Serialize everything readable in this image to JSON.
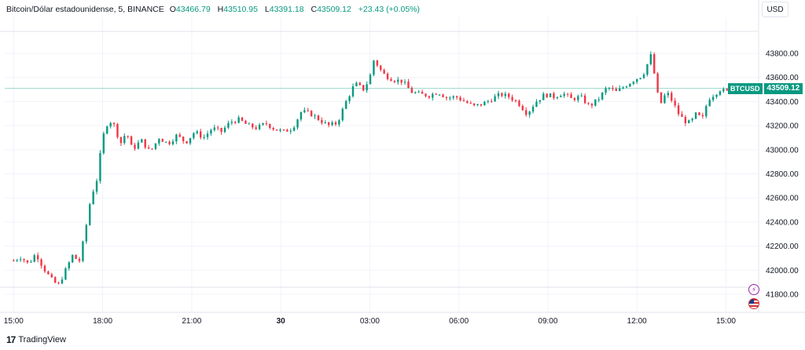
{
  "legend": {
    "symbol": "Bitcoin/Dólar estadounidense, 5, BINANCE",
    "open_label": "O",
    "open": "43466.79",
    "high_label": "H",
    "high": "43510.95",
    "low_label": "L",
    "low": "43391.18",
    "close_label": "C",
    "close": "43509.12",
    "change": "+23.43 (+0.05%)"
  },
  "currency": "USD",
  "price_tag": {
    "symbol": "BTCUSD",
    "value": "43509.12"
  },
  "footer": {
    "logo": "17",
    "brand": "TradingView"
  },
  "icons": [
    "lightning-icon",
    "us-flag-icon"
  ],
  "colors": {
    "up": "#089981",
    "down": "#f23645",
    "grid": "#f0f3fa",
    "last_price_line": "#089981"
  },
  "chart_data": {
    "type": "candlestick",
    "title": "Bitcoin/Dólar estadounidense, 5, BINANCE",
    "ylim": [
      41650,
      44100
    ],
    "y_ticks": [
      "43800.00",
      "43600.00",
      "43400.00",
      "43200.00",
      "43000.00",
      "42800.00",
      "42600.00",
      "42400.00",
      "42200.00",
      "42000.00",
      "41800.00"
    ],
    "y_tick_values": [
      43800,
      43600,
      43400,
      43200,
      43000,
      42800,
      42600,
      42400,
      42200,
      42000,
      41800
    ],
    "x_ticks": [
      "15:00",
      "18:00",
      "21:00",
      "30",
      "03:00",
      "06:00",
      "09:00",
      "12:00",
      "15:00"
    ],
    "x_tick_hours": [
      0,
      3,
      6,
      9,
      12,
      15,
      18,
      21,
      24
    ],
    "x_range_hours": [
      -0.3,
      25.1
    ],
    "bold_tick": "30",
    "last_price": 43509.12,
    "candles_5min_close_path": [
      [
        0,
        42080
      ],
      [
        0.25,
        42110
      ],
      [
        0.5,
        42050
      ],
      [
        0.75,
        42140
      ],
      [
        1,
        42020
      ],
      [
        1.25,
        41930
      ],
      [
        1.5,
        41870
      ],
      [
        1.75,
        42000
      ],
      [
        2,
        42130
      ],
      [
        2.2,
        42060
      ],
      [
        2.4,
        42300
      ],
      [
        2.6,
        42600
      ],
      [
        2.8,
        42750
      ],
      [
        3,
        43100
      ],
      [
        3.2,
        43250
      ],
      [
        3.4,
        43200
      ],
      [
        3.6,
        43050
      ],
      [
        3.8,
        43150
      ],
      [
        4,
        43000
      ],
      [
        4.3,
        43080
      ],
      [
        4.6,
        42980
      ],
      [
        4.9,
        43100
      ],
      [
        5.2,
        43050
      ],
      [
        5.5,
        43120
      ],
      [
        5.8,
        43060
      ],
      [
        6.1,
        43150
      ],
      [
        6.4,
        43100
      ],
      [
        6.7,
        43180
      ],
      [
        7,
        43150
      ],
      [
        7.3,
        43230
      ],
      [
        7.6,
        43250
      ],
      [
        7.9,
        43200
      ],
      [
        8.2,
        43180
      ],
      [
        8.5,
        43220
      ],
      [
        8.8,
        43170
      ],
      [
        9.1,
        43150
      ],
      [
        9.4,
        43180
      ],
      [
        9.7,
        43320
      ],
      [
        10,
        43300
      ],
      [
        10.3,
        43250
      ],
      [
        10.6,
        43200
      ],
      [
        10.9,
        43220
      ],
      [
        11.2,
        43400
      ],
      [
        11.5,
        43550
      ],
      [
        11.8,
        43500
      ],
      [
        12,
        43600
      ],
      [
        12.15,
        43760
      ],
      [
        12.3,
        43680
      ],
      [
        12.5,
        43620
      ],
      [
        12.8,
        43580
      ],
      [
        13.1,
        43570
      ],
      [
        13.4,
        43480
      ],
      [
        13.7,
        43460
      ],
      [
        14,
        43450
      ],
      [
        14.3,
        43480
      ],
      [
        14.6,
        43430
      ],
      [
        14.9,
        43440
      ],
      [
        15.2,
        43400
      ],
      [
        15.5,
        43360
      ],
      [
        15.8,
        43380
      ],
      [
        16.1,
        43420
      ],
      [
        16.4,
        43460
      ],
      [
        16.7,
        43440
      ],
      [
        17,
        43390
      ],
      [
        17.3,
        43300
      ],
      [
        17.6,
        43400
      ],
      [
        17.9,
        43460
      ],
      [
        18.2,
        43440
      ],
      [
        18.5,
        43470
      ],
      [
        18.8,
        43420
      ],
      [
        19.1,
        43440
      ],
      [
        19.4,
        43360
      ],
      [
        19.7,
        43420
      ],
      [
        20,
        43520
      ],
      [
        20.3,
        43480
      ],
      [
        20.6,
        43530
      ],
      [
        20.9,
        43580
      ],
      [
        21.2,
        43620
      ],
      [
        21.5,
        43800
      ],
      [
        21.65,
        43500
      ],
      [
        21.8,
        43380
      ],
      [
        22,
        43480
      ],
      [
        22.2,
        43400
      ],
      [
        22.4,
        43300
      ],
      [
        22.6,
        43240
      ],
      [
        22.8,
        43220
      ],
      [
        23,
        43300
      ],
      [
        23.2,
        43250
      ],
      [
        23.4,
        43420
      ],
      [
        23.6,
        43460
      ],
      [
        23.8,
        43500
      ],
      [
        24,
        43480
      ],
      [
        24.3,
        43509
      ]
    ]
  }
}
